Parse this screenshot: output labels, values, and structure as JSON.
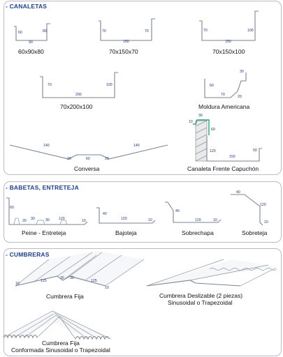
{
  "sections": {
    "canaletas": "- CANALETAS",
    "babetas": "- BABETAS, ENTRETEJA",
    "cumbreras": "- CUMBRERAS"
  },
  "canaletas": {
    "c60x90x80": {
      "name": "60x90x80",
      "d1": "60",
      "d2": "80",
      "d3": "90"
    },
    "c70x150x70": {
      "name": "70x150x70",
      "d1": "70",
      "d2": "70",
      "d3": "150"
    },
    "c70x150x100": {
      "name": "70x150x100",
      "d1": "70",
      "d2": "100",
      "d3": "150"
    },
    "c70x200x100": {
      "name": "70x200x100",
      "d1": "70",
      "d2": "100",
      "d3": "200"
    },
    "moldura": {
      "name": "Moldura Americana",
      "d1": "30",
      "d2": "60",
      "d3": "70",
      "d4": "20"
    },
    "conversa": {
      "name": "Conversa",
      "d1": "140",
      "d2": "140",
      "d3": "20",
      "d4": "60",
      "d5": "20"
    },
    "capuchon": {
      "name": "Canaleta Frente Capuchón",
      "d1": "30",
      "d2": "10",
      "d3": "60",
      "d4": "120",
      "d5": "150",
      "d6": "50"
    }
  },
  "babetas": {
    "peine": {
      "name": "Peine - Entreteja",
      "d1": "60",
      "d2": "20",
      "d3": "30",
      "d4": "30",
      "d5": "120",
      "d6": "10"
    },
    "bajoteja": {
      "name": "Bajoteja",
      "d1": "40",
      "d2": "120",
      "d3": "10"
    },
    "sobrechapa": {
      "name": "Sobrechapa",
      "d1": "40",
      "d2": "120",
      "d3": "10"
    },
    "sobreteja": {
      "name": "Sobreteja",
      "d1": "40",
      "d2": "120",
      "d3": "10"
    }
  },
  "cumbreras": {
    "fija": {
      "name": "Cumbrera Fija",
      "d1": "10",
      "d2": "125",
      "d3": "30",
      "d4": "30",
      "d5": "125",
      "d6": "10"
    },
    "deslizable": {
      "name_line1": "Cumbrera Deslizable (2 piezas)",
      "name_line2": "Sinusoidal o Trapezoidal"
    },
    "conformada": {
      "name_line1": "Cumbrera Fija",
      "name_line2": "Conformada Sinusoidal o Trapezoidal"
    }
  }
}
